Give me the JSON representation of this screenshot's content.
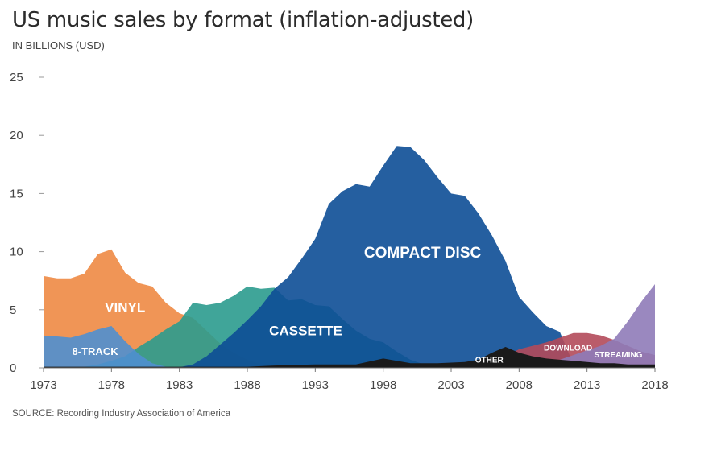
{
  "title": "US music sales by format (inflation-adjusted)",
  "subtitle": "IN BILLIONS (USD)",
  "source": "SOURCE: Recording Industry Association of America",
  "colors": {
    "vinyl": "#ee8a44",
    "eight_track": "#4f8fd0",
    "cassette": "#2b9b8e",
    "compact_disc": "#0d4e96",
    "other": "#1a1a1a",
    "download": "#b24a5a",
    "streaming": "#8f7bb8"
  },
  "chart_data": {
    "type": "area",
    "title": "US music sales by format (inflation-adjusted)",
    "ylabel": "IN BILLIONS (USD)",
    "xlim": [
      1973,
      2018
    ],
    "ylim": [
      0,
      25
    ],
    "yticks": [
      0,
      5,
      10,
      15,
      20,
      25
    ],
    "xticks": [
      1973,
      1978,
      1983,
      1988,
      1993,
      1998,
      2003,
      2008,
      2013,
      2018
    ],
    "series": [
      {
        "key": "vinyl",
        "name": "VINYL",
        "label_text": "VINYL",
        "x": [
          1973,
          1974,
          1975,
          1976,
          1977,
          1978,
          1979,
          1980,
          1981,
          1982,
          1983,
          1984,
          1985,
          1986,
          1987,
          1988,
          1989,
          1990,
          1991,
          1992,
          1993,
          1994,
          1995,
          1996,
          1997,
          1998,
          1999,
          2000,
          2001,
          2002,
          2003,
          2004,
          2005,
          2006,
          2007,
          2008,
          2009,
          2010,
          2011,
          2012,
          2013,
          2014,
          2015,
          2016,
          2017,
          2018
        ],
        "values": [
          7.9,
          7.7,
          7.7,
          8.1,
          9.8,
          10.2,
          8.2,
          7.3,
          7.0,
          5.6,
          4.7,
          4.3,
          3.2,
          2.1,
          1.3,
          0.7,
          0.3,
          0.2,
          0.1,
          0.05,
          0.05,
          0.05,
          0.05,
          0.05,
          0.05,
          0.05,
          0.05,
          0.05,
          0.05,
          0.05,
          0.05,
          0.05,
          0.05,
          0.05,
          0.05,
          0.1,
          0.1,
          0.1,
          0.1,
          0.2,
          0.25,
          0.3,
          0.4,
          0.5,
          0.45,
          0.45
        ]
      },
      {
        "key": "eight_track",
        "name": "8-TRACK",
        "label_text": "8-TRACK",
        "x": [
          1973,
          1974,
          1975,
          1976,
          1977,
          1978,
          1979,
          1980,
          1981,
          1982,
          1983
        ],
        "values": [
          2.7,
          2.7,
          2.6,
          2.9,
          3.3,
          3.6,
          2.3,
          1.2,
          0.4,
          0.1,
          0
        ]
      },
      {
        "key": "cassette",
        "name": "CASSETTE",
        "label_text": "CASSETTE",
        "x": [
          1976,
          1977,
          1978,
          1979,
          1980,
          1981,
          1982,
          1983,
          1984,
          1985,
          1986,
          1987,
          1988,
          1989,
          1990,
          1991,
          1992,
          1993,
          1994,
          1995,
          1996,
          1997,
          1998,
          1999,
          2000,
          2001,
          2002,
          2003,
          2004,
          2005,
          2006,
          2007,
          2008
        ],
        "values": [
          0.1,
          0.3,
          0.6,
          1.0,
          1.8,
          2.5,
          3.3,
          4.0,
          5.6,
          5.4,
          5.6,
          6.2,
          7.0,
          6.8,
          6.9,
          5.8,
          5.9,
          5.4,
          5.3,
          4.2,
          3.2,
          2.5,
          2.2,
          1.4,
          0.7,
          0.3,
          0.15,
          0.08,
          0.05,
          0.03,
          0.02,
          0.01,
          0
        ]
      },
      {
        "key": "compact_disc",
        "name": "COMPACT DISC",
        "label_text": "COMPACT DISC",
        "x": [
          1983,
          1984,
          1985,
          1986,
          1987,
          1988,
          1989,
          1990,
          1991,
          1992,
          1993,
          1994,
          1995,
          1996,
          1997,
          1998,
          1999,
          2000,
          2001,
          2002,
          2003,
          2004,
          2005,
          2006,
          2007,
          2008,
          2009,
          2010,
          2011,
          2012
        ],
        "values": [
          0.05,
          0.3,
          1.0,
          2.0,
          3.0,
          4.1,
          5.3,
          6.8,
          7.8,
          9.4,
          11.1,
          14.1,
          15.2,
          15.8,
          15.6,
          17.4,
          19.1,
          19.0,
          17.9,
          16.4,
          15.0,
          14.8,
          13.3,
          11.4,
          9.2,
          6.1,
          4.8,
          3.6,
          3.1,
          0.3
        ]
      },
      {
        "key": "other",
        "name": "OTHER",
        "label_text": "OTHER",
        "x": [
          1973,
          1980,
          1988,
          1990,
          1993,
          1996,
          1998,
          2000,
          2002,
          2004,
          2005,
          2006,
          2007,
          2008,
          2009,
          2010,
          2011,
          2012,
          2013,
          2014,
          2015,
          2016,
          2017,
          2018
        ],
        "values": [
          0.1,
          0.1,
          0.1,
          0.2,
          0.3,
          0.3,
          0.8,
          0.4,
          0.4,
          0.5,
          0.7,
          1.3,
          1.8,
          1.3,
          1.0,
          0.8,
          0.7,
          0.6,
          0.5,
          0.4,
          0.4,
          0.3,
          0.3,
          0.3
        ]
      },
      {
        "key": "download",
        "name": "DOWNLOAD",
        "label_text": "DOWNLOAD",
        "x": [
          2004,
          2005,
          2006,
          2007,
          2008,
          2009,
          2010,
          2011,
          2012,
          2013,
          2014,
          2015,
          2016,
          2017,
          2018
        ],
        "values": [
          0.2,
          0.5,
          0.8,
          1.0,
          1.6,
          1.9,
          2.2,
          2.6,
          3.0,
          3.0,
          2.8,
          2.4,
          1.9,
          1.4,
          1.1
        ]
      },
      {
        "key": "streaming",
        "name": "STREAMING",
        "label_text": "STREAMING",
        "x": [
          2006,
          2008,
          2010,
          2011,
          2012,
          2013,
          2014,
          2015,
          2016,
          2017,
          2018
        ],
        "values": [
          0.1,
          0.2,
          0.4,
          0.7,
          1.1,
          1.5,
          1.9,
          2.5,
          4.0,
          5.7,
          7.2
        ]
      }
    ]
  }
}
